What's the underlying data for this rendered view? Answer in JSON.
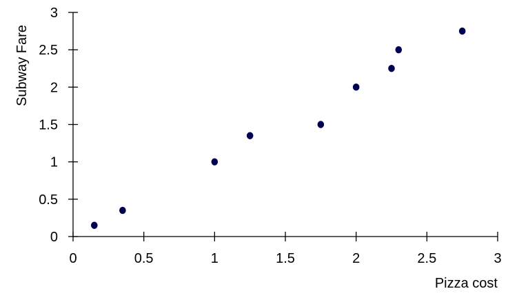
{
  "chart_data": {
    "type": "scatter",
    "title": "",
    "xlabel": "Pizza cost",
    "ylabel": "Subway Fare",
    "xlim": [
      0,
      3
    ],
    "ylim": [
      0,
      3
    ],
    "xticks": [
      "0",
      "0.5",
      "1",
      "1.5",
      "2",
      "2.5",
      "3"
    ],
    "yticks": [
      "0",
      "0.5",
      "1",
      "1.5",
      "2",
      "2.5",
      "3"
    ],
    "grid": false,
    "marker_color": "#000050",
    "points": [
      {
        "x": 0.15,
        "y": 0.15
      },
      {
        "x": 0.35,
        "y": 0.35
      },
      {
        "x": 1.0,
        "y": 1.0
      },
      {
        "x": 1.25,
        "y": 1.35
      },
      {
        "x": 1.75,
        "y": 1.5
      },
      {
        "x": 2.0,
        "y": 2.0
      },
      {
        "x": 2.25,
        "y": 2.25
      },
      {
        "x": 2.3,
        "y": 2.5
      },
      {
        "x": 2.75,
        "y": 2.75
      }
    ]
  }
}
